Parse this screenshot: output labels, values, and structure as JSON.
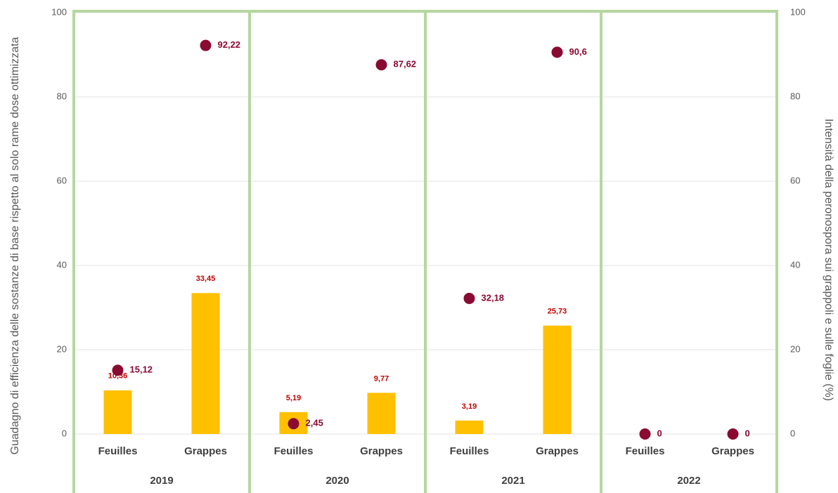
{
  "chart_data": {
    "type": "bar",
    "y_label": "Guadagno di efficienza delle sostanze di base  rispetto al solo rame dose ottimizzata",
    "y2_label": "Intensità della peronospora sui grappoli e sulle foglie (%)",
    "categories": [
      "Feuilles",
      "Grappes",
      "Feuilles",
      "Grappes",
      "Feuilles",
      "Grappes",
      "Feuilles",
      "Grappes"
    ],
    "groups": [
      "2019",
      "2020",
      "2021",
      "2022"
    ],
    "ylim": [
      0,
      100
    ],
    "yticks": [
      0,
      20,
      40,
      60,
      80,
      100
    ],
    "y2lim": [
      0,
      100
    ],
    "y2ticks": [
      0,
      20,
      40,
      60,
      80,
      100
    ],
    "grid": true,
    "series": [
      {
        "type": "bar",
        "color": "#ffc000",
        "values": [
          10.36,
          33.45,
          5.19,
          9.77,
          3.19,
          25.73,
          null,
          null
        ],
        "value_labels": [
          "10,36",
          "33,45",
          "5,19",
          "9,77",
          "3,19",
          "25,73",
          null,
          null
        ]
      },
      {
        "type": "scatter",
        "axis": "y2",
        "color": "#8b0a32",
        "values": [
          15.12,
          92.22,
          2.45,
          87.62,
          32.18,
          90.6,
          0,
          0
        ],
        "value_labels": [
          "15,12",
          "92,22",
          "2,45",
          "87,62",
          "32,18",
          "90,6",
          "0",
          "0"
        ]
      }
    ]
  }
}
